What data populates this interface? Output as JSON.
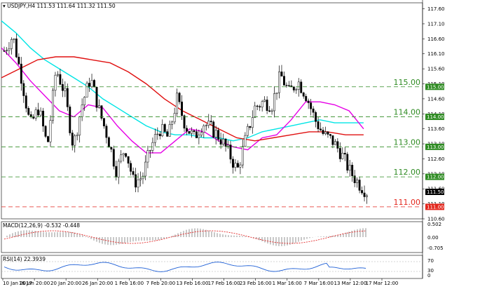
{
  "header": {
    "symbol_info": "USDJPY,H4  111.53 111.64 111.32 111.50"
  },
  "chart_data": {
    "type": "candlestick",
    "symbol": "USDJPY",
    "timeframe": "H4",
    "ohlc_readout": {
      "open": 111.53,
      "high": 111.64,
      "low": 111.32,
      "close": 111.5
    },
    "ylim": [
      110.6,
      117.8
    ],
    "y_ticks": [
      "117.60",
      "117.10",
      "116.60",
      "116.10",
      "115.60",
      "115.10",
      "114.60",
      "114.10",
      "113.60",
      "113.10",
      "112.60",
      "112.10",
      "111.60",
      "111.10",
      "110.60"
    ],
    "x_ticks": [
      "10 Jan 2017",
      "16 Jan 20:00",
      "20 Jan 20:00",
      "26 Jan 20:00",
      "1 Feb 16:00",
      "7 Feb 20:00",
      "13 Feb 16:00",
      "17 Feb 16:00",
      "23 Feb 16:00",
      "1 Mar 16:00",
      "7 Mar 16:00",
      "13 Mar 12:00",
      "17 Mar 12:00"
    ],
    "levels": [
      {
        "label": "115.00",
        "value": 115.0,
        "color": "#2e8b22",
        "badge": "115.00"
      },
      {
        "label": "114.00",
        "value": 114.0,
        "color": "#2e8b22",
        "badge": "114.00"
      },
      {
        "label": "113.00",
        "value": 113.0,
        "color": "#2e8b22",
        "badge": "113.00"
      },
      {
        "label": "112.00",
        "value": 112.0,
        "color": "#2e8b22",
        "badge": "112.00"
      },
      {
        "label": "111.00",
        "value": 111.0,
        "color": "#e3261c",
        "badge": "111.00"
      }
    ],
    "current_price": "111.50",
    "moving_averages": [
      {
        "color": "#00e5e5",
        "points": [
          [
            0,
            117.2
          ],
          [
            0.04,
            116.8
          ],
          [
            0.08,
            116.3
          ],
          [
            0.12,
            115.9
          ],
          [
            0.16,
            115.6
          ],
          [
            0.2,
            115.3
          ],
          [
            0.24,
            115.0
          ],
          [
            0.28,
            114.6
          ],
          [
            0.32,
            114.3
          ],
          [
            0.36,
            114.0
          ],
          [
            0.4,
            113.7
          ],
          [
            0.44,
            113.5
          ],
          [
            0.48,
            113.4
          ],
          [
            0.52,
            113.4
          ],
          [
            0.56,
            113.3
          ],
          [
            0.6,
            113.3
          ],
          [
            0.64,
            113.2
          ],
          [
            0.68,
            113.3
          ],
          [
            0.72,
            113.5
          ],
          [
            0.76,
            113.6
          ],
          [
            0.8,
            113.7
          ],
          [
            0.84,
            113.8
          ],
          [
            0.88,
            113.9
          ],
          [
            0.92,
            113.8
          ],
          [
            0.96,
            113.8
          ],
          [
            1,
            113.8
          ]
        ]
      },
      {
        "color": "#e600e6",
        "points": [
          [
            0,
            116.3
          ],
          [
            0.04,
            115.8
          ],
          [
            0.08,
            115.2
          ],
          [
            0.12,
            114.7
          ],
          [
            0.16,
            114.2
          ],
          [
            0.2,
            114.0
          ],
          [
            0.24,
            114.4
          ],
          [
            0.28,
            114.3
          ],
          [
            0.32,
            113.7
          ],
          [
            0.36,
            113.2
          ],
          [
            0.4,
            112.8
          ],
          [
            0.44,
            112.8
          ],
          [
            0.48,
            113.2
          ],
          [
            0.52,
            113.6
          ],
          [
            0.56,
            113.5
          ],
          [
            0.6,
            113.2
          ],
          [
            0.64,
            113.0
          ],
          [
            0.68,
            112.9
          ],
          [
            0.72,
            113.3
          ],
          [
            0.76,
            113.4
          ],
          [
            0.8,
            113.9
          ],
          [
            0.84,
            114.5
          ],
          [
            0.88,
            114.5
          ],
          [
            0.92,
            114.4
          ],
          [
            0.96,
            114.2
          ],
          [
            1,
            113.6
          ]
        ]
      },
      {
        "color": "#e01010",
        "points": [
          [
            0,
            115.3
          ],
          [
            0.05,
            115.6
          ],
          [
            0.1,
            115.9
          ],
          [
            0.15,
            116.0
          ],
          [
            0.2,
            116.0
          ],
          [
            0.25,
            115.9
          ],
          [
            0.3,
            115.8
          ],
          [
            0.35,
            115.5
          ],
          [
            0.4,
            115.1
          ],
          [
            0.45,
            114.6
          ],
          [
            0.5,
            114.2
          ],
          [
            0.55,
            113.9
          ],
          [
            0.6,
            113.6
          ],
          [
            0.65,
            113.3
          ],
          [
            0.7,
            113.2
          ],
          [
            0.75,
            113.3
          ],
          [
            0.8,
            113.4
          ],
          [
            0.85,
            113.5
          ],
          [
            0.9,
            113.5
          ],
          [
            0.95,
            113.4
          ],
          [
            1,
            113.4
          ]
        ]
      }
    ],
    "price_path": [
      [
        0,
        116.2
      ],
      [
        0.02,
        116.7
      ],
      [
        0.04,
        115.3
      ],
      [
        0.06,
        113.7
      ],
      [
        0.08,
        114.3
      ],
      [
        0.1,
        113.0
      ],
      [
        0.12,
        115.6
      ],
      [
        0.14,
        114.8
      ],
      [
        0.16,
        113.0
      ],
      [
        0.18,
        114.4
      ],
      [
        0.2,
        115.3
      ],
      [
        0.22,
        114.2
      ],
      [
        0.24,
        113.3
      ],
      [
        0.26,
        112.2
      ],
      [
        0.28,
        113.0
      ],
      [
        0.3,
        111.8
      ],
      [
        0.32,
        112.0
      ],
      [
        0.34,
        113.0
      ],
      [
        0.36,
        113.6
      ],
      [
        0.38,
        113.3
      ],
      [
        0.4,
        114.6
      ],
      [
        0.42,
        113.7
      ],
      [
        0.44,
        113.3
      ],
      [
        0.46,
        113.8
      ],
      [
        0.48,
        113.6
      ],
      [
        0.5,
        113.3
      ],
      [
        0.52,
        112.8
      ],
      [
        0.54,
        112.2
      ],
      [
        0.56,
        113.3
      ],
      [
        0.58,
        114.3
      ],
      [
        0.6,
        114.5
      ],
      [
        0.62,
        114.4
      ],
      [
        0.64,
        115.4
      ],
      [
        0.66,
        114.8
      ],
      [
        0.68,
        115.2
      ],
      [
        0.7,
        114.7
      ],
      [
        0.72,
        113.9
      ],
      [
        0.74,
        113.4
      ],
      [
        0.76,
        113.2
      ],
      [
        0.78,
        112.8
      ],
      [
        0.8,
        112.2
      ],
      [
        0.82,
        111.8
      ],
      [
        0.84,
        111.5
      ]
    ],
    "indicators": {
      "macd": {
        "label": "MACD(12,26,9) -0.532 -0.448",
        "ticks": [
          "0.502",
          "0.00",
          "-0.705"
        ]
      },
      "rsi": {
        "label": "RSI(14) 22.3939",
        "ticks": [
          "70",
          "30",
          "0"
        ]
      }
    }
  }
}
